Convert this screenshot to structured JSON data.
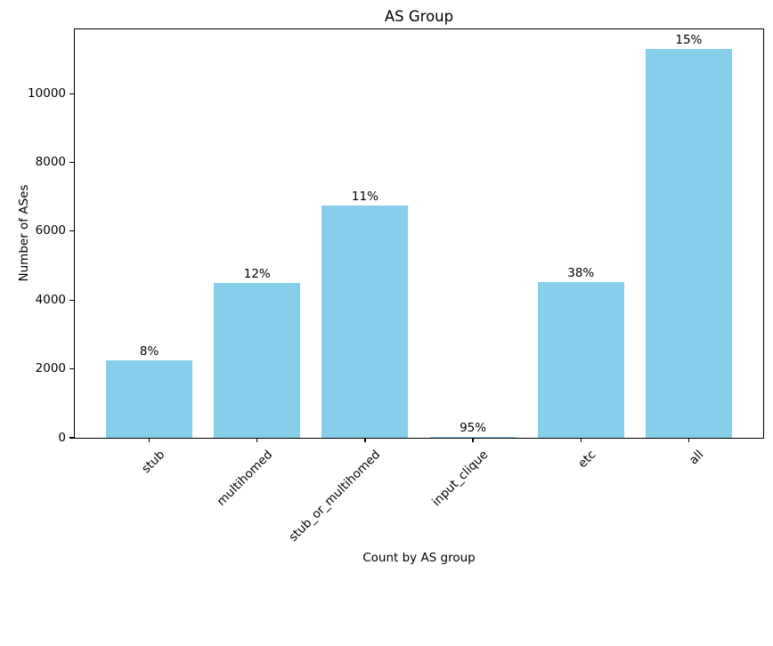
{
  "chart_data": {
    "type": "bar",
    "title": "AS Group",
    "xlabel": "Count by AS group",
    "ylabel": "Number of ASes",
    "categories": [
      "stub",
      "multihomed",
      "stub_or_multihomed",
      "input_clique",
      "etc",
      "all"
    ],
    "values": [
      2250,
      4500,
      6750,
      20,
      4520,
      11300
    ],
    "bar_labels": [
      "8%",
      "12%",
      "11%",
      "95%",
      "38%",
      "15%"
    ],
    "yticks": [
      0,
      2000,
      4000,
      6000,
      8000,
      10000
    ],
    "ylim": [
      0,
      11866
    ],
    "bar_color": "#87ceeb",
    "background_color": "#ffffff",
    "grid": false,
    "legend": "none",
    "xtick_rotation": 45
  }
}
